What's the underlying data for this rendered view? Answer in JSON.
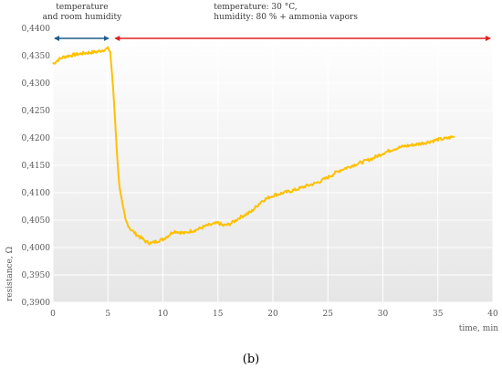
{
  "chart_data": {
    "type": "line",
    "title": "",
    "xlabel": "time, min",
    "ylabel": "resistance, Ω",
    "xlim": [
      0,
      40
    ],
    "ylim": [
      0.39,
      0.44
    ],
    "x_ticks": [
      0,
      5,
      10,
      15,
      20,
      25,
      30,
      35,
      40
    ],
    "y_ticks": [
      0.39,
      0.395,
      0.4,
      0.405,
      0.41,
      0.415,
      0.42,
      0.425,
      0.43,
      0.435,
      0.44
    ],
    "x_tick_labels": [
      "0",
      "5",
      "10",
      "15",
      "20",
      "25",
      "30",
      "35",
      "40"
    ],
    "y_tick_labels": [
      "0,3900",
      "0,3950",
      "0,4000",
      "0,4050",
      "0,4100",
      "0,4150",
      "0,4200",
      "0,4250",
      "0,4300",
      "0,4350",
      "0,4400"
    ],
    "grid": true,
    "background": "gradient-grey",
    "series": [
      {
        "color": "#FFC000",
        "x": [
          0,
          0.5,
          1,
          2,
          3,
          4,
          4.5,
          5,
          5.2,
          5.4,
          5.6,
          5.8,
          6.0,
          6.3,
          6.6,
          7.0,
          7.5,
          8.0,
          8.5,
          9.0,
          9.5,
          10.0,
          10.5,
          11.0,
          11.5,
          12.0,
          12.5,
          13.0,
          13.5,
          14.0,
          14.5,
          15.0,
          15.5,
          16.0,
          16.5,
          17.0,
          17.5,
          18.0,
          18.5,
          19.0,
          19.5,
          20.0,
          21.0,
          22.0,
          23.0,
          24.0,
          25.0,
          26.0,
          27.0,
          28.0,
          29.0,
          30.0,
          31.0,
          32.0,
          33.0,
          34.0,
          35.0,
          35.5,
          36.0,
          36.5
        ],
        "y": [
          0.4335,
          0.4343,
          0.4348,
          0.4352,
          0.4355,
          0.4357,
          0.436,
          0.4363,
          0.4358,
          0.431,
          0.425,
          0.418,
          0.412,
          0.408,
          0.405,
          0.4035,
          0.4025,
          0.4018,
          0.401,
          0.4008,
          0.4012,
          0.4015,
          0.4022,
          0.403,
          0.4028,
          0.4026,
          0.403,
          0.4032,
          0.4036,
          0.404,
          0.4042,
          0.4045,
          0.404,
          0.4042,
          0.4048,
          0.4055,
          0.406,
          0.4065,
          0.4075,
          0.4085,
          0.409,
          0.4095,
          0.41,
          0.4105,
          0.4112,
          0.4118,
          0.4128,
          0.414,
          0.4148,
          0.4155,
          0.4162,
          0.4172,
          0.418,
          0.4185,
          0.4188,
          0.4192,
          0.4197,
          0.4198,
          0.42,
          0.4203
        ]
      }
    ],
    "annotations": [
      {
        "lines": [
          "temperature",
          "and room humidity"
        ],
        "x_start": 0,
        "x_end": 5.3,
        "color": "#1F5F8B"
      },
      {
        "lines": [
          "temperature: 30 °C,",
          "humidity: 80 % + ammonia vapors"
        ],
        "x_start": 5.5,
        "x_end": 40,
        "color": "#E02020"
      }
    ]
  },
  "figure": {
    "caption": "(b)"
  }
}
